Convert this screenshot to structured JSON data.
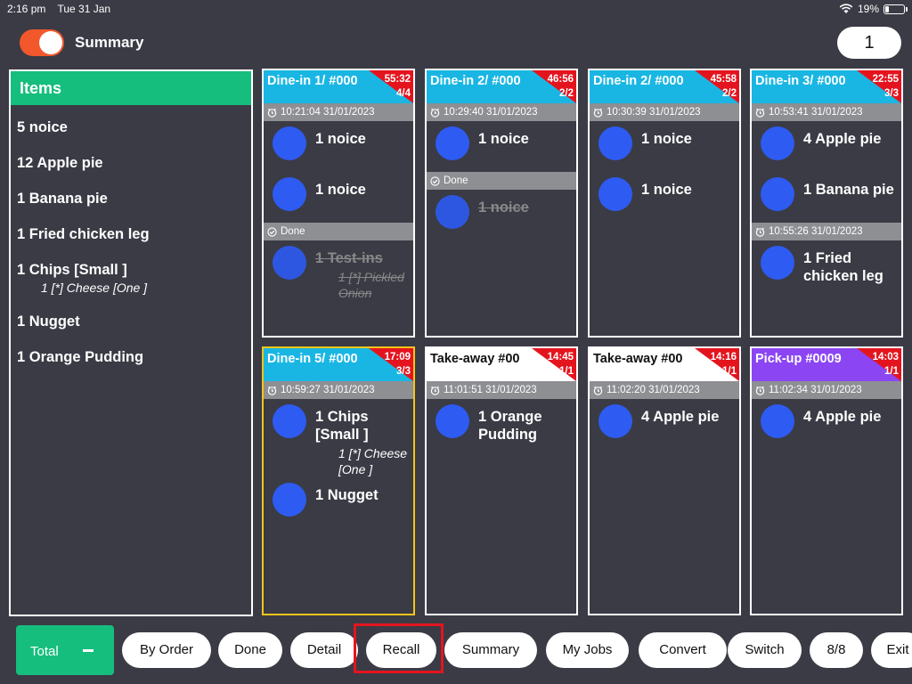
{
  "status": {
    "time": "2:16 pm",
    "date": "Tue 31 Jan",
    "battery": "19%",
    "battery_level": 0.19
  },
  "header": {
    "summary_label": "Summary",
    "counter": "1"
  },
  "items_panel": {
    "title": "Items",
    "items": [
      {
        "text": "5 noice"
      },
      {
        "text": "12 Apple pie"
      },
      {
        "text": "1 Banana pie"
      },
      {
        "text": "1 Fried chicken leg"
      },
      {
        "text": "1 Chips  [Small ]",
        "sub": "1 [*] Cheese [One ]"
      },
      {
        "text": "1 Nugget"
      },
      {
        "text": "1 Orange Pudding"
      }
    ]
  },
  "cards": [
    {
      "title": "Dine-in 1/ #000",
      "time": "55:32",
      "count": "4/4",
      "header": "blue",
      "sections": [
        {
          "kind": "ts",
          "text": "10:21:04 31/01/2023"
        },
        {
          "kind": "item",
          "name": "1 noice"
        },
        {
          "kind": "item",
          "name": "1 noice"
        },
        {
          "kind": "done",
          "text": "Done"
        },
        {
          "kind": "item",
          "name": "1 Test-ins",
          "sub": "1 [*] Pickled Onion",
          "struck": true
        }
      ]
    },
    {
      "title": "Dine-in 2/ #000",
      "time": "46:56",
      "count": "2/2",
      "header": "blue",
      "sections": [
        {
          "kind": "ts",
          "text": "10:29:40 31/01/2023"
        },
        {
          "kind": "item",
          "name": "1 noice"
        },
        {
          "kind": "done",
          "text": "Done"
        },
        {
          "kind": "item",
          "name": "1 noice",
          "struck": true
        }
      ]
    },
    {
      "title": "Dine-in 2/ #000",
      "time": "45:58",
      "count": "2/2",
      "header": "blue",
      "sections": [
        {
          "kind": "ts",
          "text": "10:30:39 31/01/2023"
        },
        {
          "kind": "item",
          "name": "1 noice"
        },
        {
          "kind": "item",
          "name": "1 noice"
        }
      ]
    },
    {
      "title": "Dine-in 3/ #000",
      "time": "22:55",
      "count": "3/3",
      "header": "blue",
      "sections": [
        {
          "kind": "ts",
          "text": "10:53:41 31/01/2023"
        },
        {
          "kind": "item",
          "name": "4 Apple pie"
        },
        {
          "kind": "item",
          "name": "1 Banana pie"
        },
        {
          "kind": "ts",
          "text": "10:55:26 31/01/2023"
        },
        {
          "kind": "item",
          "name": "1 Fried chicken leg"
        }
      ]
    },
    {
      "title": "Dine-in 5/ #000",
      "time": "17:09",
      "count": "3/3",
      "header": "blue",
      "selected": true,
      "sections": [
        {
          "kind": "ts",
          "text": "10:59:27 31/01/2023"
        },
        {
          "kind": "item",
          "name": "1 Chips [Small ]",
          "sub": "1 [*] Cheese [One ]"
        },
        {
          "kind": "item",
          "name": "1 Nugget"
        }
      ]
    },
    {
      "title": "Take-away  #00",
      "time": "14:45",
      "count": "1/1",
      "header": "white",
      "sections": [
        {
          "kind": "ts",
          "text": "11:01:51 31/01/2023"
        },
        {
          "kind": "item",
          "name": "1 Orange Pudding"
        }
      ]
    },
    {
      "title": "Take-away  #00",
      "time": "14:16",
      "count": "1/1",
      "header": "white",
      "sections": [
        {
          "kind": "ts",
          "text": "11:02:20 31/01/2023"
        },
        {
          "kind": "item",
          "name": "4 Apple pie"
        }
      ]
    },
    {
      "title": "Pick-up  #0009",
      "time": "14:03",
      "count": "1/1",
      "header": "purple",
      "sections": [
        {
          "kind": "ts",
          "text": "11:02:34 31/01/2023"
        },
        {
          "kind": "item",
          "name": "4 Apple pie"
        }
      ]
    }
  ],
  "toolbar": {
    "total_label": "Total",
    "buttons": [
      "By Order",
      "Done",
      "Detail",
      "Recall",
      "Summary",
      "My Jobs",
      "Convert",
      "Switch",
      "8/8",
      "Exit"
    ]
  },
  "colors": {
    "accent": "#16be7d",
    "toggle": "#f2582c",
    "dot": "#2e5bf2",
    "corner": "#e4141e",
    "selected_border": "#f5c518"
  }
}
